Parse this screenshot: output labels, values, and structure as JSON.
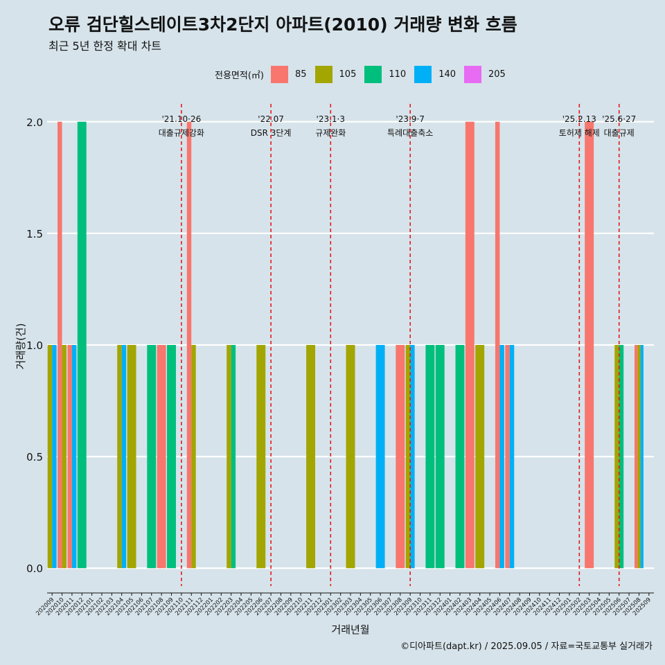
{
  "header": {
    "title": "오류 검단힐스테이트3차2단지 아파트(2010) 거래량 변화 흐름",
    "subtitle": "최근 5년 한정 확대 차트"
  },
  "legend": {
    "title": "전용면적(㎡)",
    "items": [
      {
        "label": "85",
        "color": "#f8766d"
      },
      {
        "label": "105",
        "color": "#a3a500"
      },
      {
        "label": "110",
        "color": "#00bf7d"
      },
      {
        "label": "140",
        "color": "#00b0f6"
      },
      {
        "label": "205",
        "color": "#e76bf3"
      }
    ]
  },
  "caption": "©디아파트(dapt.kr) / 2025.09.05 / 자료=국토교통부 실거래가",
  "chart_data": {
    "type": "bar",
    "stacking": "dodge",
    "xlabel": "거래년월",
    "ylabel": "거래량(건)",
    "ylim": [
      -0.08,
      2.08
    ],
    "yticks": [
      0.0,
      0.5,
      1.0,
      1.5,
      2.0
    ],
    "ytick_labels": [
      "0.0",
      "0.5",
      "1.0",
      "1.5",
      "2.0"
    ],
    "categories": [
      "202009",
      "202010",
      "202011",
      "202012",
      "202101",
      "202102",
      "202103",
      "202104",
      "202105",
      "202106",
      "202107",
      "202108",
      "202109",
      "202110",
      "202111",
      "202112",
      "202201",
      "202202",
      "202203",
      "202204",
      "202205",
      "202206",
      "202207",
      "202208",
      "202209",
      "202210",
      "202211",
      "202212",
      "202301",
      "202302",
      "202303",
      "202304",
      "202305",
      "202306",
      "202307",
      "202308",
      "202309",
      "202310",
      "202311",
      "202312",
      "202401",
      "202402",
      "202403",
      "202404",
      "202405",
      "202406",
      "202407",
      "202408",
      "202409",
      "202410",
      "202411",
      "202412",
      "202501",
      "202502",
      "202503",
      "202504",
      "202505",
      "202506",
      "202507",
      "202508",
      "202509"
    ],
    "series": [
      {
        "name": "85",
        "color": "#f8766d",
        "points": [
          [
            "202010",
            2
          ],
          [
            "202011",
            1
          ],
          [
            "202108",
            1
          ],
          [
            "202111",
            2
          ],
          [
            "202308",
            1
          ],
          [
            "202403",
            2
          ],
          [
            "202406",
            2
          ],
          [
            "202407",
            1
          ],
          [
            "202503",
            2
          ],
          [
            "202508",
            1
          ]
        ]
      },
      {
        "name": "105",
        "color": "#a3a500",
        "points": [
          [
            "202009",
            1
          ],
          [
            "202010",
            1
          ],
          [
            "202104",
            1
          ],
          [
            "202105",
            1
          ],
          [
            "202111",
            1
          ],
          [
            "202203",
            1
          ],
          [
            "202206",
            1
          ],
          [
            "202211",
            1
          ],
          [
            "202303",
            1
          ],
          [
            "202309",
            1
          ],
          [
            "202404",
            1
          ],
          [
            "202506",
            1
          ],
          [
            "202508",
            1
          ]
        ]
      },
      {
        "name": "110",
        "color": "#00bf7d",
        "points": [
          [
            "202012",
            2
          ],
          [
            "202107",
            1
          ],
          [
            "202109",
            1
          ],
          [
            "202203",
            1
          ],
          [
            "202311",
            1
          ],
          [
            "202312",
            1
          ],
          [
            "202402",
            1
          ],
          [
            "202506",
            1
          ]
        ]
      },
      {
        "name": "140",
        "color": "#00b0f6",
        "points": [
          [
            "202009",
            1
          ],
          [
            "202011",
            1
          ],
          [
            "202104",
            1
          ],
          [
            "202306",
            1
          ],
          [
            "202309",
            1
          ],
          [
            "202406",
            1
          ],
          [
            "202407",
            1
          ],
          [
            "202508",
            1
          ]
        ]
      },
      {
        "name": "205",
        "color": "#e76bf3",
        "points": []
      }
    ],
    "annotations": [
      {
        "x": "202110",
        "line1": "'21.10·26",
        "line2": "대출규제강화"
      },
      {
        "x": "202207",
        "line1": "'22.07",
        "line2": "DSR 3단계"
      },
      {
        "x": "202301",
        "line1": "'23.1·3",
        "line2": "규제완화"
      },
      {
        "x": "202309",
        "line1": "'23.9·7",
        "line2": "특례대출축소"
      },
      {
        "x": "202502",
        "line1": "'25.2.13",
        "line2": "토허제 해제"
      },
      {
        "x": "202506",
        "line1": "'25.6·27",
        "line2": "대출규제"
      }
    ],
    "grid": true,
    "legend_position": "top"
  }
}
